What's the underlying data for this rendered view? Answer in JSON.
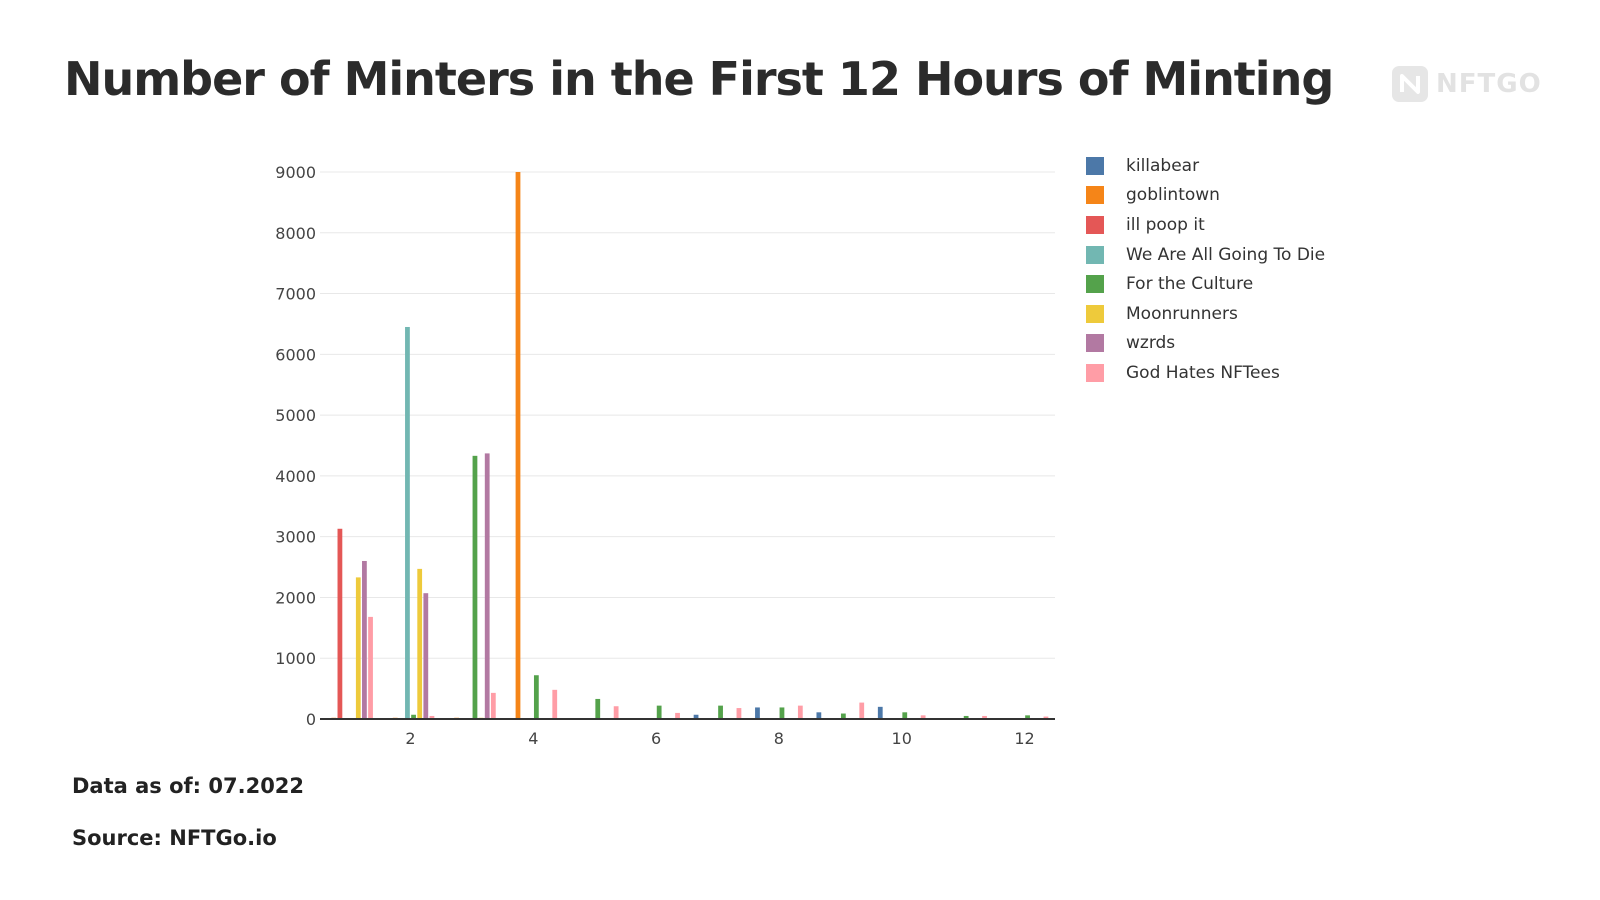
{
  "title": "Number of Minters in the First 12 Hours of Minting",
  "logo": {
    "text": "NFTGO",
    "icon": "nftgo-logo-icon"
  },
  "footer": {
    "data_as_of": "Data as of: 07.2022",
    "source": "Source: NFTGo.io"
  },
  "chart_data": {
    "type": "bar",
    "x": [
      1,
      2,
      3,
      4,
      5,
      6,
      7,
      8,
      9,
      10,
      11,
      12
    ],
    "x_ticks": [
      2,
      4,
      6,
      8,
      10,
      12
    ],
    "y_ticks": [
      0,
      1000,
      2000,
      3000,
      4000,
      5000,
      6000,
      7000,
      8000,
      9000
    ],
    "ylim": [
      0,
      9100
    ],
    "title": "",
    "xlabel": "",
    "ylabel": "",
    "legend_position": "right",
    "grid": true,
    "series": [
      {
        "name": "killabear",
        "color": "#4c78a8",
        "values": [
          10,
          10,
          10,
          10,
          10,
          10,
          70,
          190,
          110,
          200,
          10,
          10
        ]
      },
      {
        "name": "goblintown",
        "color": "#f58518",
        "values": [
          20,
          20,
          20,
          9000,
          10,
          10,
          10,
          10,
          10,
          10,
          10,
          10
        ]
      },
      {
        "name": "ill poop it",
        "color": "#e45756",
        "values": [
          3130,
          0,
          0,
          0,
          0,
          0,
          0,
          0,
          0,
          0,
          0,
          0
        ]
      },
      {
        "name": "We Are All Going To Die",
        "color": "#72b7b2",
        "values": [
          0,
          6450,
          10,
          0,
          0,
          0,
          0,
          0,
          0,
          0,
          0,
          0
        ]
      },
      {
        "name": "For the Culture",
        "color": "#54a24b",
        "values": [
          10,
          70,
          4330,
          720,
          330,
          220,
          220,
          190,
          90,
          110,
          50,
          60
        ]
      },
      {
        "name": "Moonrunners",
        "color": "#eeca3b",
        "values": [
          2330,
          2470,
          20,
          0,
          0,
          0,
          0,
          0,
          0,
          0,
          0,
          0
        ]
      },
      {
        "name": "wzrds",
        "color": "#b279a2",
        "values": [
          2600,
          2070,
          4370,
          0,
          0,
          0,
          0,
          0,
          0,
          0,
          0,
          0
        ]
      },
      {
        "name": "God Hates NFTees",
        "color": "#ff9da6",
        "values": [
          1680,
          50,
          430,
          480,
          210,
          100,
          180,
          220,
          270,
          60,
          50,
          40
        ]
      }
    ]
  }
}
